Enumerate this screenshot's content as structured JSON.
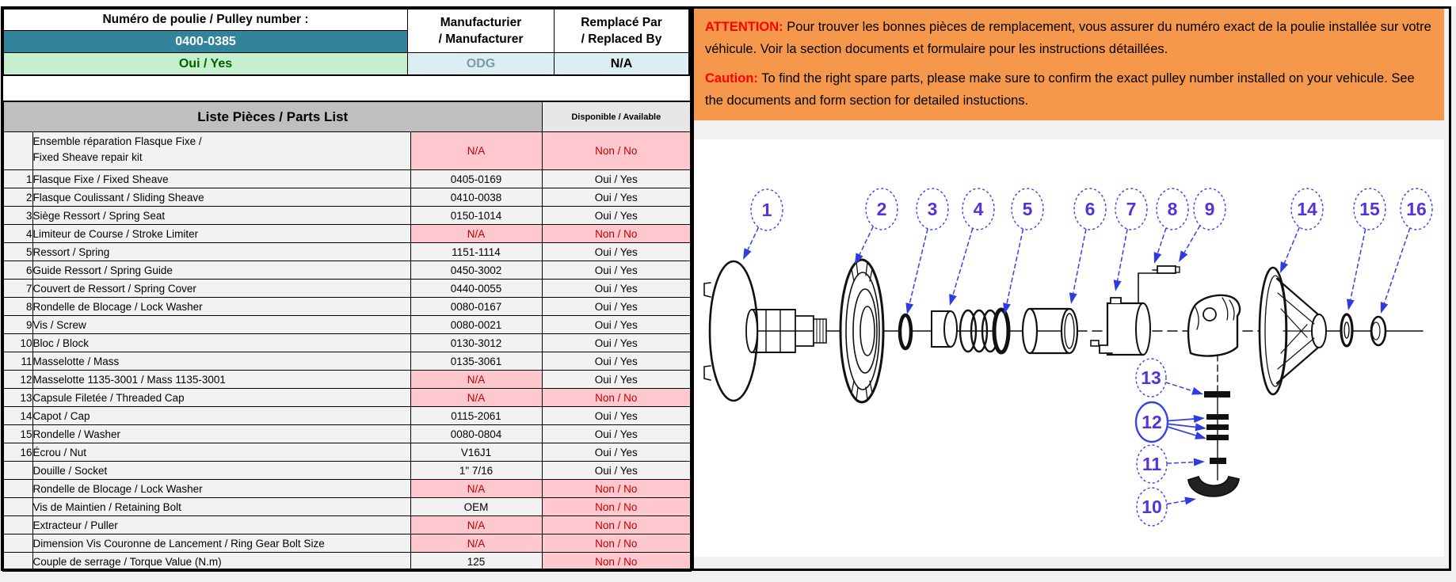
{
  "header": {
    "pulley_number_label": "Numéro de poulie / Pulley number :",
    "pulley_number": "0400-0385",
    "pulley_available": "Oui / Yes",
    "manufacturer_label_line1": "Manufacturier",
    "manufacturer_label_line2": "/ Manufacturer",
    "manufacturer": "ODG",
    "replaced_label_line1": "Remplacé Par",
    "replaced_label_line2": "/ Replaced By",
    "replaced_by": "N/A"
  },
  "notice": {
    "attention_label": "ATTENTION:",
    "attention_text": "Pour trouver les bonnes pièces de remplacement, vous assurer du numéro exact de la poulie installée sur votre véhicule. Voir la section documents et formulaire pour les instructions détaillées.",
    "caution_label": "Caution:",
    "caution_text": "To find the right spare parts, please make sure to confirm the exact pulley number installed on your vehicule. See the documents and form section for detailed instuctions."
  },
  "parts_table": {
    "title": "Liste Pièces / Parts List",
    "available_header": "Disponible / Available",
    "rows": [
      {
        "num": "",
        "name": "Ensemble réparation Flasque Fixe /",
        "name2": "Fixed Sheave repair kit",
        "part": "N/A",
        "part_na": true,
        "avail": "Non / No",
        "avail_no": true,
        "tall": true
      },
      {
        "num": "1",
        "name": "Flasque Fixe / Fixed Sheave",
        "part": "0405-0169",
        "part_na": false,
        "avail": "Oui / Yes",
        "avail_no": false
      },
      {
        "num": "2",
        "name": "Flasque Coulissant / Sliding Sheave",
        "part": "0410-0038",
        "part_na": false,
        "avail": "Oui / Yes",
        "avail_no": false
      },
      {
        "num": "3",
        "name": "Siège Ressort / Spring Seat",
        "part": "0150-1014",
        "part_na": false,
        "avail": "Oui / Yes",
        "avail_no": false
      },
      {
        "num": "4",
        "name": "Limiteur de Course / Stroke Limiter",
        "part": "N/A",
        "part_na": true,
        "avail": "Non / No",
        "avail_no": true
      },
      {
        "num": "5",
        "name": "Ressort / Spring",
        "part": "1151-1114",
        "part_na": false,
        "avail": "Oui / Yes",
        "avail_no": false
      },
      {
        "num": "6",
        "name": "Guide Ressort / Spring Guide",
        "part": "0450-3002",
        "part_na": false,
        "avail": "Oui / Yes",
        "avail_no": false
      },
      {
        "num": "7",
        "name": "Couvert de Ressort / Spring Cover",
        "part": "0440-0055",
        "part_na": false,
        "avail": "Oui / Yes",
        "avail_no": false
      },
      {
        "num": "8",
        "name": "Rondelle de Blocage / Lock Washer",
        "part": "0080-0167",
        "part_na": false,
        "avail": "Oui / Yes",
        "avail_no": false
      },
      {
        "num": "9",
        "name": "Vis / Screw",
        "part": "0080-0021",
        "part_na": false,
        "avail": "Oui / Yes",
        "avail_no": false
      },
      {
        "num": "10",
        "name": "Bloc / Block",
        "part": "0130-3012",
        "part_na": false,
        "avail": "Oui / Yes",
        "avail_no": false
      },
      {
        "num": "11",
        "name": "Masselotte / Mass",
        "part": "0135-3061",
        "part_na": false,
        "avail": "Oui / Yes",
        "avail_no": false
      },
      {
        "num": "12",
        "name": "Masselotte 1135-3001 / Mass 1135-3001",
        "part": "N/A",
        "part_na": true,
        "avail": "Oui / Yes",
        "avail_no": false
      },
      {
        "num": "13",
        "name": "Capsule Filetée / Threaded Cap",
        "part": "N/A",
        "part_na": true,
        "avail": "Non / No",
        "avail_no": true
      },
      {
        "num": "14",
        "name": "Capot / Cap",
        "part": "0115-2061",
        "part_na": false,
        "avail": "Oui / Yes",
        "avail_no": false
      },
      {
        "num": "15",
        "name": "Rondelle / Washer",
        "part": "0080-0804",
        "part_na": false,
        "avail": "Oui / Yes",
        "avail_no": false
      },
      {
        "num": "16",
        "name": "Écrou / Nut",
        "part": "V16J1",
        "part_na": false,
        "avail": "Oui / Yes",
        "avail_no": false
      },
      {
        "num": "",
        "name": "Douille / Socket",
        "part": "1\" 7/16",
        "part_na": false,
        "avail": "Oui / Yes",
        "avail_no": false
      },
      {
        "num": "",
        "name": "Rondelle de  Blocage / Lock Washer",
        "part": "N/A",
        "part_na": true,
        "avail": "Non / No",
        "avail_no": true
      },
      {
        "num": "",
        "name": "Vis de Maintien / Retaining Bolt",
        "part": "OEM",
        "part_na": false,
        "avail": "Non / No",
        "avail_no": true
      },
      {
        "num": "",
        "name": "Extracteur / Puller",
        "part": "N/A",
        "part_na": true,
        "avail": "Non / No",
        "avail_no": true
      },
      {
        "num": "",
        "name": "Dimension Vis Couronne de Lancement / Ring Gear Bolt Size",
        "part": "N/A",
        "part_na": true,
        "avail": "Non / No",
        "avail_no": true
      },
      {
        "num": "",
        "name": "Couple de serrage / Torque Value (N.m)",
        "part": "125",
        "part_na": false,
        "avail": "Non / No",
        "avail_no": true
      }
    ]
  },
  "diagram": {
    "callouts": [
      "1",
      "2",
      "3",
      "4",
      "5",
      "6",
      "7",
      "8",
      "9",
      "14",
      "15",
      "16",
      "13",
      "12",
      "11",
      "10"
    ]
  },
  "colors": {
    "teal_header": "#31849B",
    "green_bg": "#C6EFCE",
    "green_text": "#006100",
    "light_blue_bg": "#DAEEF3",
    "pink_bg": "#FFC7CE",
    "pink_text": "#C00000",
    "orange_notice": "#F6984C",
    "callout_blue": "#3742E8",
    "callout_number": "#5334D9"
  }
}
